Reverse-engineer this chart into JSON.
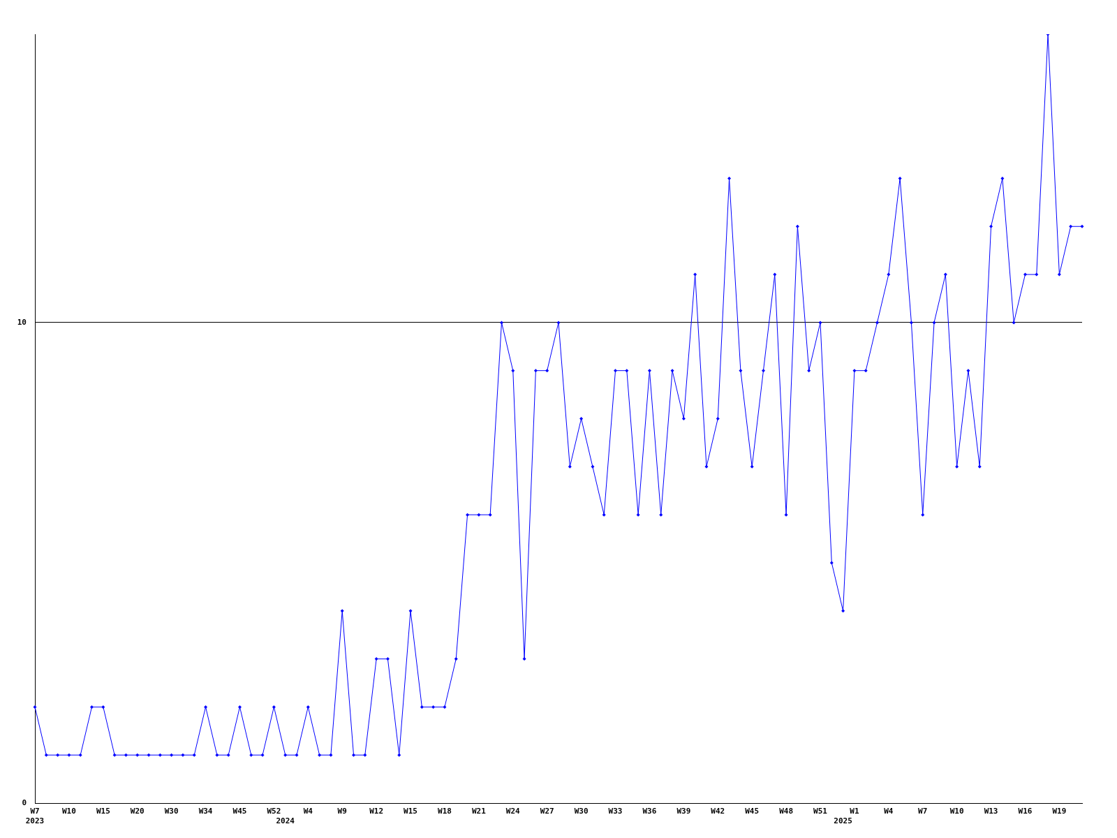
{
  "chart_data": {
    "type": "line",
    "categories": [
      "W7\n2023",
      null,
      null,
      "W10",
      null,
      null,
      "W15",
      null,
      null,
      "W20",
      null,
      null,
      "W30",
      null,
      null,
      "W34",
      null,
      null,
      "W45",
      null,
      null,
      "W52",
      "\n2024",
      null,
      "W4",
      null,
      null,
      "W9",
      null,
      null,
      "W12",
      null,
      null,
      "W15",
      null,
      null,
      "W18",
      null,
      null,
      "W21",
      null,
      null,
      "W24",
      null,
      null,
      "W27",
      null,
      null,
      "W30",
      null,
      null,
      "W33",
      null,
      null,
      "W36",
      null,
      null,
      "W39",
      null,
      null,
      "W42",
      null,
      null,
      "W45",
      null,
      null,
      "W48",
      null,
      null,
      "W51",
      null,
      "\n2025",
      "W1",
      null,
      null,
      "W4",
      null,
      null,
      "W7",
      null,
      null,
      "W10",
      null,
      null,
      "W13",
      null,
      null,
      "W16",
      null,
      null,
      "W19",
      null,
      null
    ],
    "series": [
      {
        "color": "#0000ff",
        "values": [
          2,
          1,
          1,
          1,
          1,
          2,
          2,
          1,
          1,
          1,
          1,
          1,
          1,
          1,
          1,
          2,
          1,
          1,
          2,
          1,
          1,
          2,
          1,
          1,
          2,
          1,
          1,
          4,
          1,
          1,
          3,
          3,
          1,
          4,
          2,
          2,
          2,
          3,
          6,
          6,
          6,
          10,
          9,
          3,
          9,
          9,
          10,
          7,
          8,
          7,
          6,
          9,
          9,
          6,
          9,
          6,
          9,
          8,
          11,
          7,
          8,
          13,
          9,
          7,
          9,
          11,
          6,
          12,
          9,
          10,
          5,
          4,
          9,
          9,
          10,
          11,
          13,
          10,
          6,
          10,
          11,
          7,
          9,
          7,
          12,
          13,
          10,
          11,
          11,
          16,
          11,
          12,
          12
        ]
      }
    ],
    "ylim": [
      0,
      16
    ],
    "yticks": [
      0,
      10
    ],
    "grid": "y",
    "legend": false,
    "marker": "diamond",
    "line_style": "solid"
  }
}
